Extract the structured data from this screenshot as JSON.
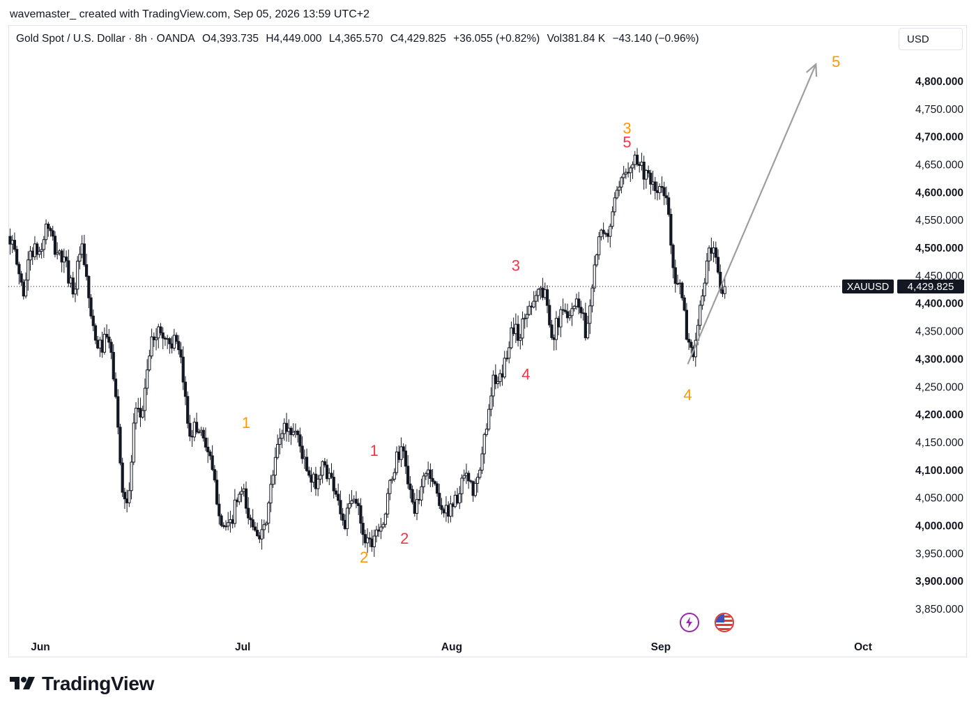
{
  "header": {
    "credit": "wavemaster_ created with TradingView.com, Sep 05, 2026 13:59 UTC+2",
    "symbol": "Gold Spot / U.S. Dollar · 8h · OANDA",
    "o": "O4,393.735",
    "h": "H4,449.000",
    "l": "L4,365.570",
    "c": "C4,429.825",
    "change": "+36.055 (+0.82%)",
    "vol": "Vol381.84 K",
    "extra": "−43.140 (−0.96%)",
    "currency": "USD"
  },
  "brand": {
    "name": "TradingView",
    "logo_icon": "tradingview-logo-icon"
  },
  "events": [
    {
      "icon": "lightning-icon",
      "color": "#9c27b0"
    },
    {
      "icon": "us-flag-icon",
      "color": "#e53935"
    }
  ],
  "colors": {
    "candle": "#131722",
    "wave_orange": "#ff9800",
    "wave_red": "#f23645",
    "arrow": "#9e9e9e",
    "price_tag": "#131722"
  },
  "chart_data": {
    "type": "candlestick",
    "interval": "8h",
    "ylim": [
      3820,
      4860
    ],
    "yticks": [
      "4,800.000",
      "4,750.000",
      "4,700.000",
      "4,650.000",
      "4,600.000",
      "4,550.000",
      "4,500.000",
      "4,450.000",
      "4,400.000",
      "4,350.000",
      "4,300.000",
      "4,250.000",
      "4,200.000",
      "4,150.000",
      "4,100.000",
      "4,050.000",
      "4,000.000",
      "3,950.000",
      "3,900.000",
      "3,850.000"
    ],
    "ytick_values": [
      4800,
      4750,
      4700,
      4650,
      4600,
      4550,
      4500,
      4450,
      4400,
      4350,
      4300,
      4250,
      4200,
      4150,
      4100,
      4050,
      4000,
      3950,
      3900,
      3850
    ],
    "bold_ticks": [
      4800,
      4700,
      4600,
      4500,
      4400,
      4300,
      4200,
      4100,
      4000,
      3900
    ],
    "xticks": [
      {
        "label": "Jun",
        "t": 0
      },
      {
        "label": "Jul",
        "t": 30
      },
      {
        "label": "Aug",
        "t": 61
      },
      {
        "label": "Sep",
        "t": 92
      },
      {
        "label": "Oct",
        "t": 122
      }
    ],
    "current_price": {
      "symbol": "XAUUSD",
      "label": "4,429.825",
      "value": 4429.825
    },
    "anchors": [
      [
        -4.5,
        4520
      ],
      [
        -2.5,
        4420
      ],
      [
        -1.5,
        4495
      ],
      [
        0,
        4490
      ],
      [
        1,
        4545
      ],
      [
        2,
        4500
      ],
      [
        3.5,
        4475
      ],
      [
        5,
        4420
      ],
      [
        6,
        4505
      ],
      [
        7,
        4425
      ],
      [
        8,
        4330
      ],
      [
        9,
        4320
      ],
      [
        10,
        4340
      ],
      [
        11,
        4260
      ],
      [
        12,
        4080
      ],
      [
        13,
        4030
      ],
      [
        14,
        4200
      ],
      [
        15,
        4195
      ],
      [
        16,
        4300
      ],
      [
        17,
        4350
      ],
      [
        18,
        4345
      ],
      [
        19,
        4330
      ],
      [
        20,
        4330
      ],
      [
        21,
        4280
      ],
      [
        22,
        4170
      ],
      [
        23,
        4175
      ],
      [
        24,
        4170
      ],
      [
        25,
        4125
      ],
      [
        26,
        4060
      ],
      [
        27,
        4000
      ],
      [
        28,
        3990
      ],
      [
        29,
        4040
      ],
      [
        30,
        4060
      ],
      [
        31,
        4005
      ],
      [
        32,
        4000
      ],
      [
        33,
        3975
      ],
      [
        34,
        4050
      ],
      [
        35,
        4130
      ],
      [
        36,
        4180
      ],
      [
        37,
        4170
      ],
      [
        38,
        4170
      ],
      [
        39,
        4120
      ],
      [
        40,
        4075
      ],
      [
        41,
        4080
      ],
      [
        42,
        4110
      ],
      [
        43,
        4085
      ],
      [
        44,
        4060
      ],
      [
        45,
        3995
      ],
      [
        46,
        4040
      ],
      [
        47,
        4040
      ],
      [
        48,
        3980
      ],
      [
        49,
        3970
      ],
      [
        50,
        4000
      ],
      [
        51,
        4010
      ],
      [
        52,
        4080
      ],
      [
        53,
        4130
      ],
      [
        54,
        4125
      ],
      [
        55,
        4040
      ],
      [
        56,
        4030
      ],
      [
        57,
        4100
      ],
      [
        58,
        4090
      ],
      [
        59,
        4050
      ],
      [
        60,
        4020
      ],
      [
        61,
        4040
      ],
      [
        62,
        4050
      ],
      [
        63,
        4090
      ],
      [
        64,
        4060
      ],
      [
        65,
        4080
      ],
      [
        66,
        4170
      ],
      [
        67,
        4260
      ],
      [
        68,
        4250
      ],
      [
        69,
        4300
      ],
      [
        70,
        4360
      ],
      [
        71,
        4340
      ],
      [
        72,
        4380
      ],
      [
        73,
        4410
      ],
      [
        74,
        4425
      ],
      [
        75,
        4410
      ],
      [
        76,
        4340
      ],
      [
        77,
        4375
      ],
      [
        78,
        4385
      ],
      [
        79,
        4395
      ],
      [
        80,
        4405
      ],
      [
        81,
        4340
      ],
      [
        82,
        4460
      ],
      [
        83,
        4520
      ],
      [
        84,
        4515
      ],
      [
        85,
        4575
      ],
      [
        86,
        4605
      ],
      [
        87,
        4645
      ],
      [
        88,
        4665
      ],
      [
        89,
        4650
      ],
      [
        90,
        4625
      ],
      [
        91,
        4600
      ],
      [
        92,
        4605
      ],
      [
        93,
        4580
      ],
      [
        94,
        4450
      ],
      [
        95,
        4420
      ],
      [
        96,
        4330
      ],
      [
        97,
        4310
      ],
      [
        98,
        4400
      ],
      [
        99,
        4485
      ],
      [
        100,
        4485
      ],
      [
        101,
        4410
      ],
      [
        101.5,
        4430
      ]
    ],
    "t_range": [
      -4.5,
      101.5
    ],
    "wave_labels": [
      {
        "text": "5",
        "t": 118,
        "price": 4835,
        "color": "orange"
      },
      {
        "text": "3",
        "t": 87,
        "price": 4715,
        "color": "orange"
      },
      {
        "text": "5",
        "t": 87,
        "price": 4690,
        "color": "red"
      },
      {
        "text": "3",
        "t": 70.5,
        "price": 4468,
        "color": "red"
      },
      {
        "text": "4",
        "t": 72,
        "price": 4272,
        "color": "red"
      },
      {
        "text": "4",
        "t": 96,
        "price": 4235,
        "color": "orange"
      },
      {
        "text": "1",
        "t": 30.5,
        "price": 4185,
        "color": "orange"
      },
      {
        "text": "1",
        "t": 49.5,
        "price": 4135,
        "color": "red"
      },
      {
        "text": "2",
        "t": 48,
        "price": 3943,
        "color": "orange"
      },
      {
        "text": "2",
        "t": 54,
        "price": 3977,
        "color": "red"
      }
    ],
    "projection_arrow": {
      "from": {
        "t": 96,
        "price": 4290
      },
      "to": {
        "t": 115,
        "price": 4830
      }
    }
  }
}
